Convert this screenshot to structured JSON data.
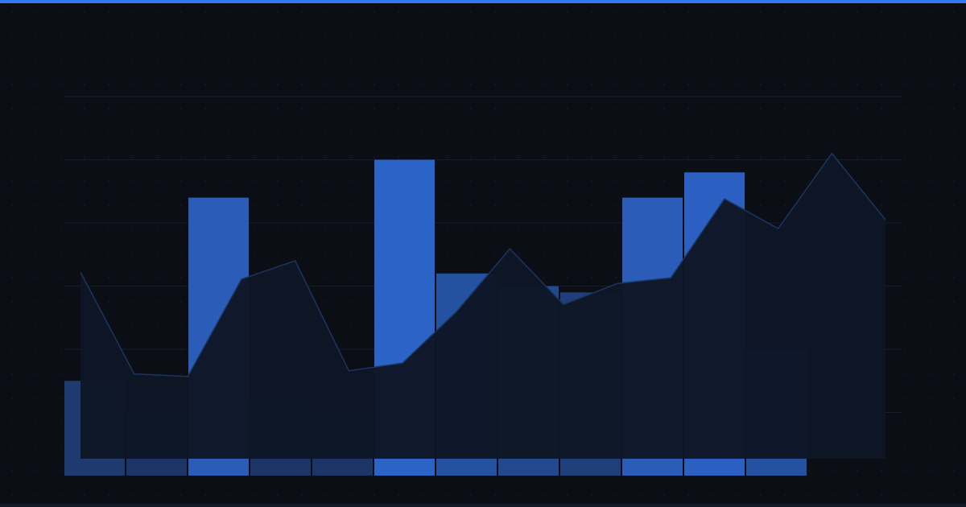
{
  "chart_data": [
    {
      "type": "bar",
      "categories": [
        null,
        null,
        null,
        null,
        null,
        null,
        null,
        null,
        null,
        null,
        null,
        null
      ],
      "values": [
        1.5,
        1.0,
        4.4,
        1.2,
        1.0,
        5.0,
        3.2,
        3.0,
        2.9,
        4.4,
        4.8,
        2.0
      ],
      "colors": [
        "#1e3a6e",
        "#1c3566",
        "#2a5cb8",
        "#1c3566",
        "#1c3566",
        "#2b63c6",
        "#2452a0",
        "#22498e",
        "#1f3f7a",
        "#2a5cb8",
        "#2b60c2",
        "#2452a0"
      ],
      "ylim": [
        0,
        6
      ],
      "yticks": [
        1,
        2,
        3,
        4,
        5,
        6
      ],
      "grid": true
    },
    {
      "type": "area",
      "values": [
        3.22,
        1.61,
        1.57,
        3.11,
        3.4,
        1.66,
        1.78,
        2.59,
        3.59,
        2.71,
        3.04,
        3.13,
        4.38,
        3.91,
        5.1,
        4.05
      ],
      "color": "#0e1726",
      "line_color": "#1b3560",
      "ylim": [
        0,
        6
      ]
    }
  ]
}
